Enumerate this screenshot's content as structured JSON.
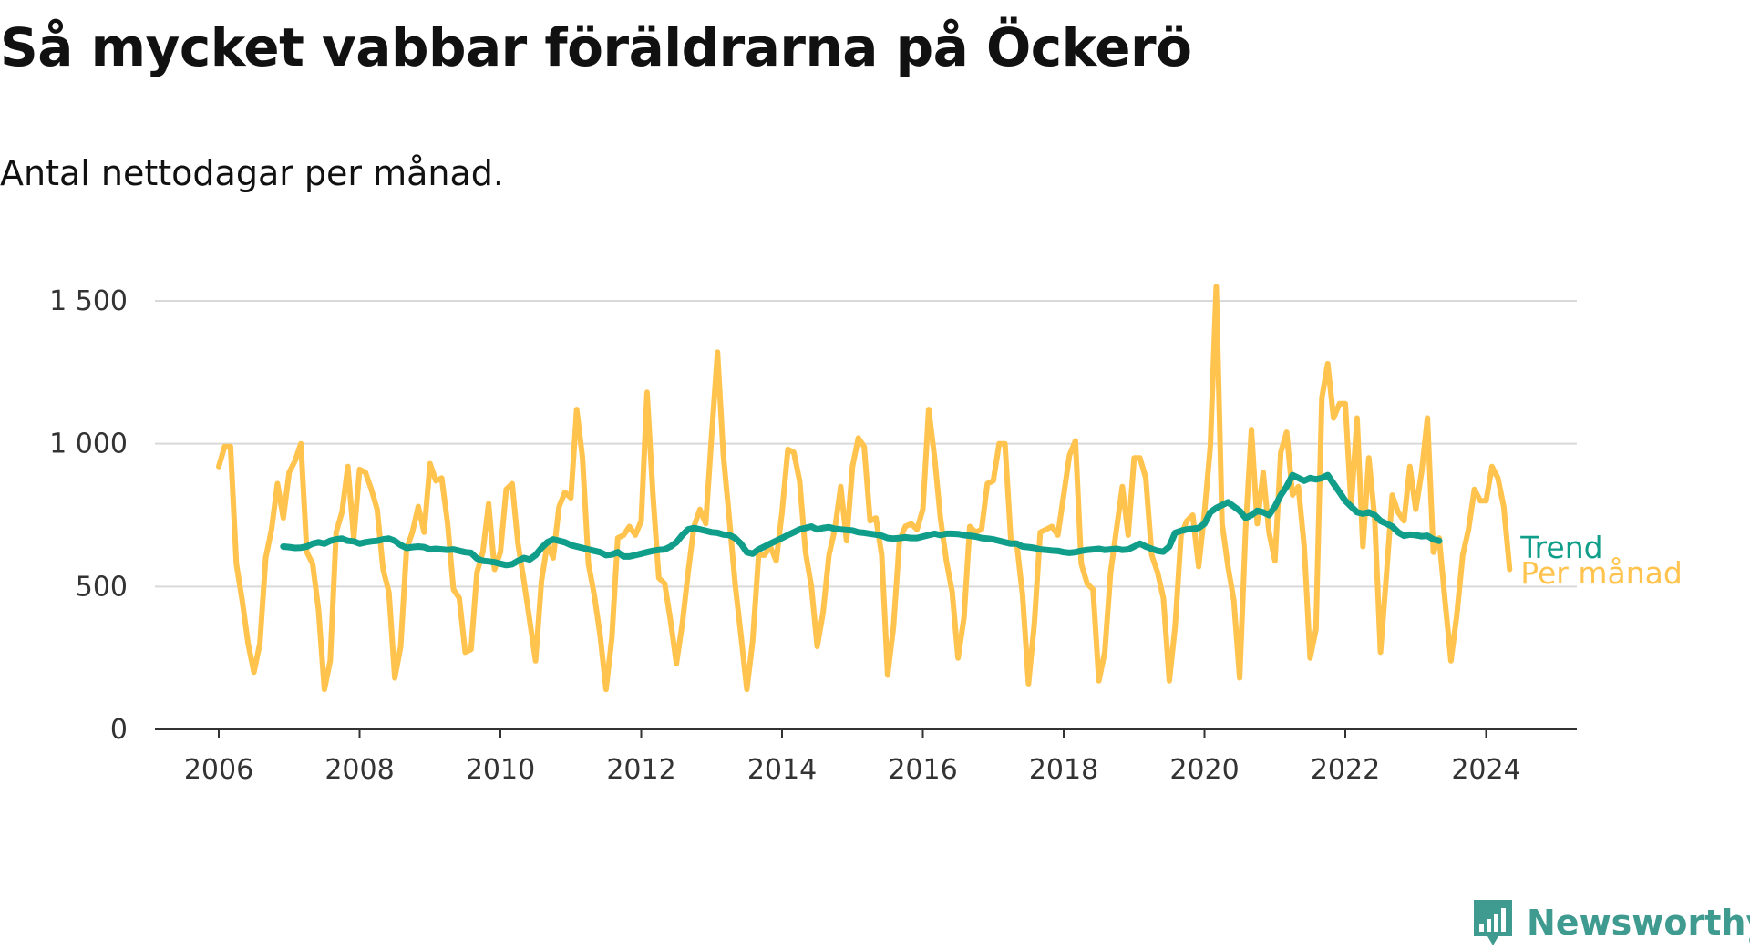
{
  "header": {
    "title": "Så mycket vabbar föräldrarna på Öckerö",
    "subtitle": "Antal nettodagar per månad."
  },
  "brand": {
    "name": "Newsworthy",
    "icon": "bar-chart-speech-bubble-icon"
  },
  "colors": {
    "monthly": "#ffc34e",
    "trend": "#109e8a",
    "grid": "#d9d9d9",
    "axis": "#333333",
    "brand": "#3f9a8f"
  },
  "chart_data": {
    "type": "line",
    "title": "Så mycket vabbar föräldrarna på Öckerö",
    "subtitle": "Antal nettodagar per månad.",
    "xlabel": "",
    "ylabel": "",
    "x_ticks": [
      "2006",
      "2008",
      "2010",
      "2012",
      "2014",
      "2016",
      "2018",
      "2020",
      "2022",
      "2024"
    ],
    "y_ticks": [
      "0",
      "500",
      "1 000",
      "1 500"
    ],
    "xlim": [
      "2005-11",
      "2026-06"
    ],
    "ylim": [
      0,
      1500
    ],
    "grid": "horizontal",
    "legend": "inline labels at line ends (right)",
    "x_start": "2006-01",
    "series": [
      {
        "name": "Per månad",
        "color": "#ffc34e",
        "start": "2006-01",
        "values": [
          920,
          990,
          990,
          580,
          450,
          300,
          200,
          300,
          600,
          700,
          860,
          740,
          900,
          940,
          1000,
          620,
          580,
          420,
          140,
          240,
          690,
          760,
          920,
          670,
          910,
          900,
          840,
          770,
          560,
          480,
          180,
          290,
          630,
          690,
          780,
          690,
          930,
          870,
          880,
          720,
          490,
          460,
          270,
          280,
          550,
          620,
          790,
          560,
          620,
          840,
          860,
          650,
          520,
          380,
          240,
          520,
          650,
          600,
          780,
          830,
          810,
          1120,
          950,
          580,
          470,
          330,
          140,
          320,
          670,
          680,
          710,
          680,
          730,
          1180,
          820,
          530,
          510,
          380,
          230,
          370,
          550,
          710,
          770,
          720,
          1030,
          1320,
          960,
          740,
          510,
          330,
          140,
          310,
          610,
          610,
          640,
          590,
          760,
          980,
          970,
          870,
          620,
          500,
          290,
          410,
          610,
          700,
          850,
          660,
          920,
          1020,
          990,
          730,
          740,
          610,
          190,
          360,
          660,
          710,
          720,
          700,
          770,
          1120,
          950,
          740,
          590,
          480,
          250,
          390,
          710,
          690,
          700,
          860,
          870,
          1000,
          1000,
          660,
          650,
          470,
          160,
          370,
          690,
          700,
          710,
          680,
          820,
          960,
          1010,
          580,
          510,
          490,
          170,
          270,
          550,
          700,
          850,
          680,
          950,
          950,
          880,
          610,
          550,
          460,
          170,
          360,
          680,
          730,
          750,
          570,
          760,
          990,
          1550,
          720,
          570,
          450,
          180,
          700,
          1050,
          720,
          900,
          690,
          590,
          970,
          1040,
          820,
          850,
          640,
          250,
          350,
          1160,
          1280,
          1090,
          1140,
          1140,
          780,
          1090,
          640,
          950,
          740,
          270,
          540,
          820,
          760,
          730,
          920,
          770,
          900,
          1090,
          620,
          670,
          450,
          240,
          400,
          610,
          700,
          840,
          800,
          800,
          920,
          880,
          780,
          560
        ]
      },
      {
        "name": "Trend",
        "color": "#109e8a",
        "start": "2006-12",
        "values": [
          640,
          638,
          635,
          636,
          640,
          650,
          655,
          650,
          660,
          665,
          668,
          660,
          658,
          650,
          655,
          658,
          660,
          665,
          668,
          660,
          645,
          635,
          638,
          640,
          638,
          630,
          632,
          630,
          628,
          630,
          625,
          620,
          618,
          598,
          590,
          588,
          585,
          580,
          575,
          578,
          590,
          600,
          595,
          610,
          635,
          655,
          665,
          660,
          655,
          645,
          640,
          635,
          630,
          625,
          620,
          610,
          612,
          620,
          605,
          605,
          610,
          615,
          620,
          625,
          628,
          630,
          640,
          655,
          680,
          700,
          705,
          700,
          695,
          690,
          688,
          682,
          680,
          670,
          650,
          620,
          615,
          630,
          640,
          650,
          660,
          670,
          680,
          690,
          700,
          705,
          710,
          700,
          705,
          708,
          702,
          700,
          698,
          696,
          690,
          688,
          685,
          682,
          678,
          670,
          668,
          670,
          672,
          670,
          670,
          675,
          680,
          685,
          680,
          685,
          685,
          684,
          680,
          678,
          675,
          670,
          668,
          665,
          660,
          655,
          650,
          650,
          640,
          638,
          635,
          630,
          628,
          626,
          625,
          620,
          618,
          620,
          625,
          628,
          630,
          632,
          628,
          630,
          632,
          628,
          630,
          640,
          650,
          640,
          632,
          625,
          622,
          640,
          688,
          695,
          700,
          702,
          705,
          720,
          760,
          775,
          785,
          795,
          780,
          765,
          740,
          750,
          765,
          760,
          750,
          780,
          820,
          850,
          890,
          880,
          870,
          880,
          875,
          880,
          890,
          860,
          830,
          800,
          780,
          760,
          755,
          760,
          750,
          730,
          720,
          710,
          690,
          678,
          682,
          680,
          676,
          678,
          665,
          660
        ]
      }
    ]
  }
}
